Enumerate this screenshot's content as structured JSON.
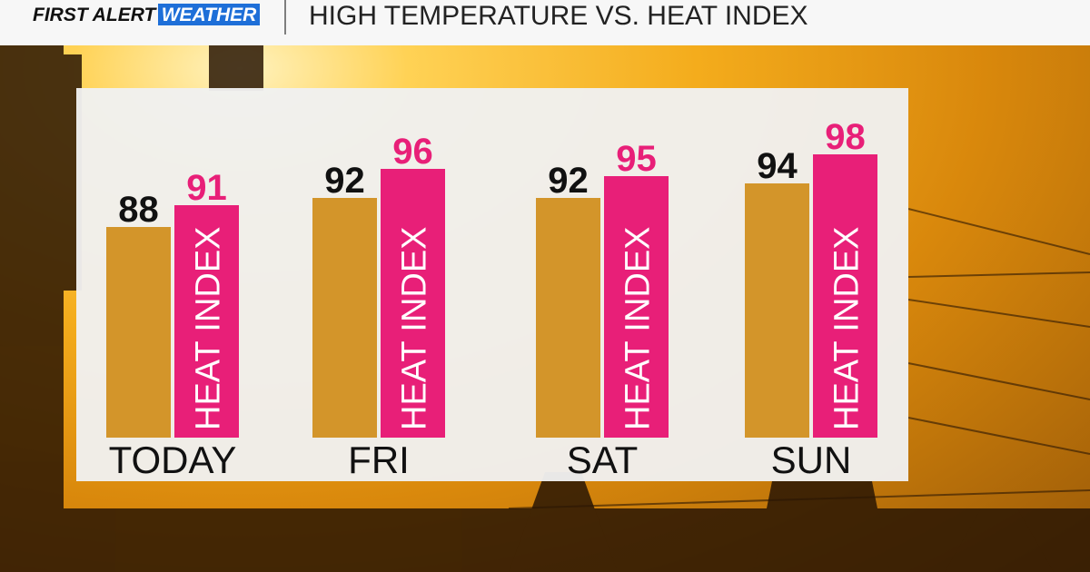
{
  "header": {
    "brand": "FIRST ALERT",
    "badge": "WEATHER"
  },
  "chart_data": {
    "type": "bar",
    "title": "HIGH TEMPERATURE VS. HEAT INDEX",
    "categories": [
      "TODAY",
      "FRI",
      "SAT",
      "SUN"
    ],
    "series": [
      {
        "color": "#d3952a",
        "values": [
          88,
          92,
          92,
          94
        ]
      },
      {
        "name": "HEAT INDEX",
        "color": "#e81f78",
        "values": [
          91,
          96,
          95,
          98
        ]
      }
    ],
    "ylim": [
      59,
      100
    ]
  }
}
